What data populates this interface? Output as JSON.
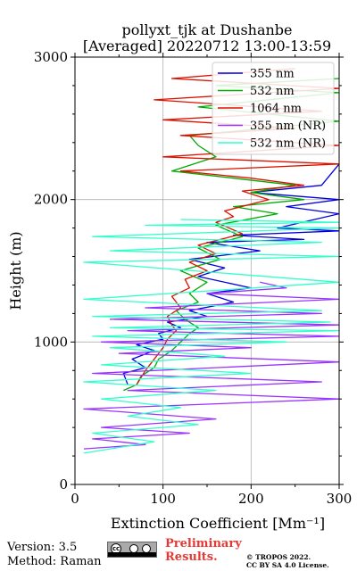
{
  "chart_data": {
    "type": "line",
    "title_line1": "pollyxt_tjk at Dushanbe",
    "title_line2": "[Averaged] 20220712 13:00-13:59",
    "xlabel": "Extinction Coefficient [Mm⁻¹]",
    "ylabel": "Height (m)",
    "xlim": [
      0,
      300
    ],
    "ylim": [
      0,
      3000
    ],
    "xticks": [
      "0",
      "100",
      "200",
      "300"
    ],
    "yticks": [
      "0",
      "1000",
      "2000",
      "3000"
    ],
    "grid": true,
    "legend_position": "top-right",
    "series": [
      {
        "name": "355 nm",
        "color": "#0000dd",
        "x": [
          60,
          55,
          80,
          65,
          90,
          70,
          100,
          95,
          120,
          105,
          150,
          130,
          180,
          150,
          200,
          140,
          170,
          130,
          210,
          150,
          260,
          180,
          300,
          230,
          300,
          240,
          300,
          200,
          280,
          300
        ],
        "y": [
          700,
          780,
          820,
          880,
          940,
          980,
          1020,
          1060,
          1100,
          1140,
          1180,
          1220,
          1280,
          1340,
          1380,
          1460,
          1520,
          1580,
          1640,
          1700,
          1720,
          1750,
          1780,
          1800,
          1900,
          1950,
          2000,
          2050,
          2100,
          2250
        ]
      },
      {
        "name": "532 nm",
        "color": "#00aa00",
        "x": [
          55,
          70,
          75,
          90,
          95,
          110,
          120,
          130,
          140,
          125,
          115,
          140,
          130,
          150,
          120,
          165,
          140,
          190,
          160,
          230,
          180,
          260,
          200,
          250,
          110,
          160,
          140,
          130,
          300,
          140,
          300,
          160,
          300
        ],
        "y": [
          660,
          700,
          760,
          820,
          880,
          940,
          1000,
          1060,
          1100,
          1160,
          1220,
          1280,
          1340,
          1420,
          1500,
          1580,
          1660,
          1740,
          1820,
          1900,
          1950,
          2000,
          2050,
          2100,
          2200,
          2300,
          2380,
          2450,
          2550,
          2650,
          2750,
          2800,
          2850
        ]
      },
      {
        "name": "1064 nm",
        "color": "#dd1100",
        "x": [
          70,
          80,
          100,
          105,
          115,
          110,
          105,
          120,
          110,
          130,
          125,
          150,
          130,
          160,
          140,
          190,
          160,
          180,
          170,
          220,
          190,
          260,
          200,
          120,
          300,
          100,
          300,
          120,
          250,
          100,
          280,
          90,
          300,
          110,
          250
        ],
        "y": [
          700,
          800,
          960,
          1020,
          1080,
          1120,
          1180,
          1240,
          1320,
          1380,
          1440,
          1500,
          1560,
          1620,
          1680,
          1760,
          1840,
          1880,
          1920,
          2000,
          2060,
          2100,
          2150,
          2200,
          2250,
          2300,
          2380,
          2450,
          2500,
          2560,
          2620,
          2700,
          2780,
          2850,
          2920
        ]
      },
      {
        "name": "355 nm (NR)",
        "color": "#9933ff",
        "x": [
          10,
          80,
          20,
          130,
          30,
          160,
          10,
          300,
          60,
          280,
          20,
          300,
          50,
          200,
          30,
          300,
          60,
          300,
          40,
          280,
          80,
          300,
          150,
          240,
          210
        ],
        "y": [
          250,
          280,
          320,
          360,
          400,
          460,
          530,
          600,
          660,
          720,
          780,
          860,
          920,
          960,
          1000,
          1040,
          1080,
          1120,
          1160,
          1200,
          1240,
          1300,
          1340,
          1380,
          1420
        ]
      },
      {
        "name": "532 nm (NR)",
        "color": "#33ffcc",
        "x": [
          10,
          90,
          20,
          140,
          60,
          120,
          30,
          160,
          10,
          200,
          30,
          170,
          40,
          240,
          20,
          300,
          40,
          290,
          20,
          280,
          10,
          300,
          10,
          300,
          40,
          280,
          20,
          300,
          80,
          300,
          120
        ],
        "y": [
          220,
          300,
          360,
          420,
          480,
          540,
          600,
          660,
          720,
          780,
          840,
          900,
          960,
          1000,
          1040,
          1080,
          1100,
          1140,
          1180,
          1220,
          1300,
          1420,
          1560,
          1600,
          1640,
          1700,
          1740,
          1800,
          1820,
          1840,
          1860
        ]
      }
    ]
  },
  "footer": {
    "version": "Version: 3.5",
    "method": "Method: Raman",
    "cc_badge": "cc",
    "preliminary_line1": "Preliminary",
    "preliminary_line2": "Results.",
    "copyright_line1": "© TROPOS 2022.",
    "copyright_line2": "CC BY SA 4.0 License."
  }
}
